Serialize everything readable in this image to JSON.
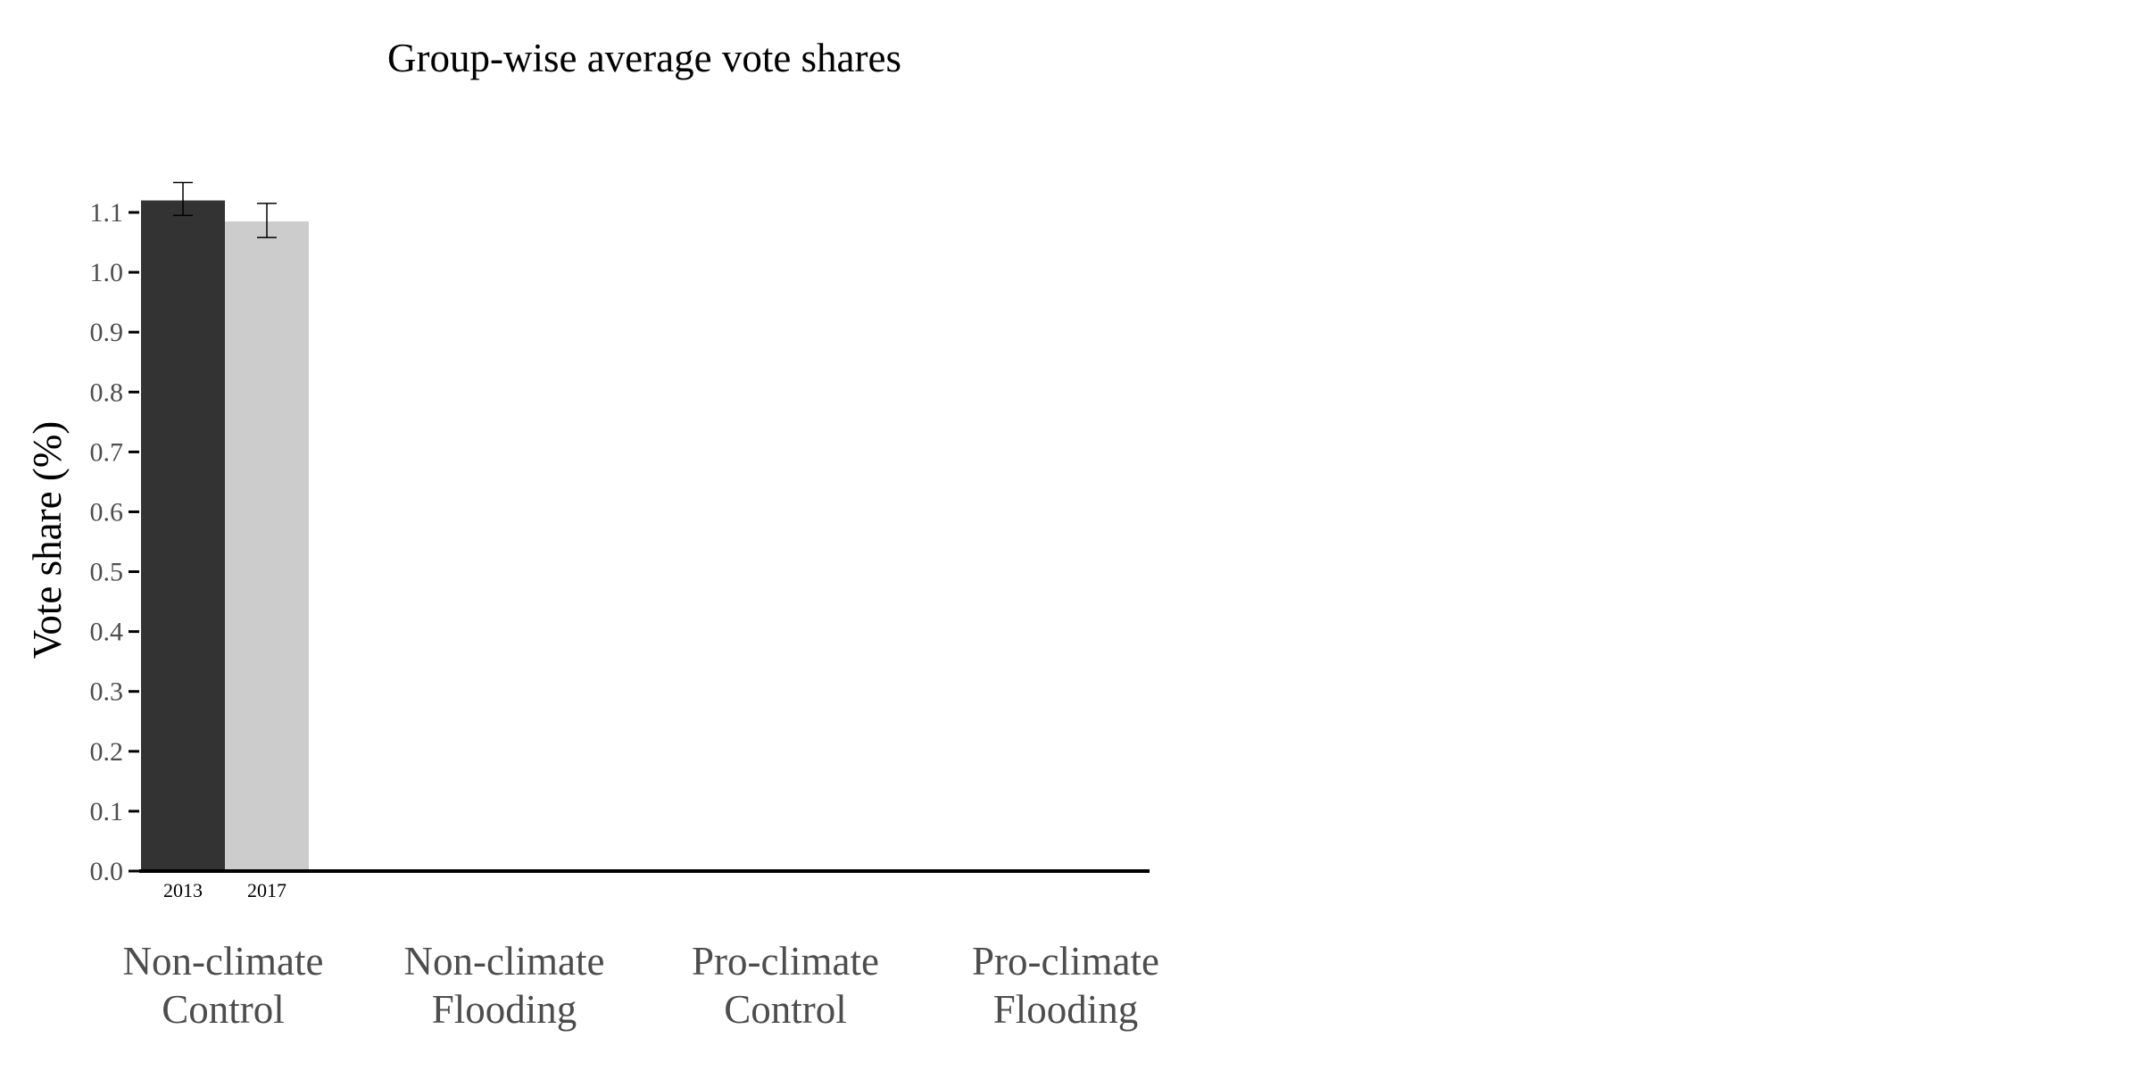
{
  "chart_data": {
    "type": "bar",
    "title": "Group-wise average vote shares",
    "ylabel": "Vote share (%)",
    "xlabel": "",
    "ylim": [
      0,
      1.1
    ],
    "yticks": [
      "0.0",
      "0.1",
      "0.2",
      "0.3",
      "0.4",
      "0.5",
      "0.6",
      "0.7",
      "0.8",
      "0.9",
      "1.0",
      "1.1"
    ],
    "categories": [
      {
        "line1": "Non-climate",
        "line2": "Control"
      },
      {
        "line1": "Non-climate",
        "line2": "Flooding"
      },
      {
        "line1": "Pro-climate",
        "line2": "Control"
      },
      {
        "line1": "Pro-climate",
        "line2": "Flooding"
      }
    ],
    "series": [
      {
        "name": "2013",
        "color": "#333333",
        "values": [
          1.12,
          null,
          null,
          null
        ],
        "error_low": [
          1.095,
          null,
          null,
          null
        ],
        "error_high": [
          1.15,
          null,
          null,
          null
        ]
      },
      {
        "name": "2017",
        "color": "#cccccc",
        "values": [
          1.085,
          null,
          null,
          null
        ],
        "error_low": [
          1.058,
          null,
          null,
          null
        ],
        "error_high": [
          1.115,
          null,
          null,
          null
        ]
      }
    ],
    "grid": false,
    "legend": "none",
    "colors": {
      "axis": "#000000",
      "tick_label": "#4d4d4d",
      "error_bar": "#000000"
    }
  }
}
